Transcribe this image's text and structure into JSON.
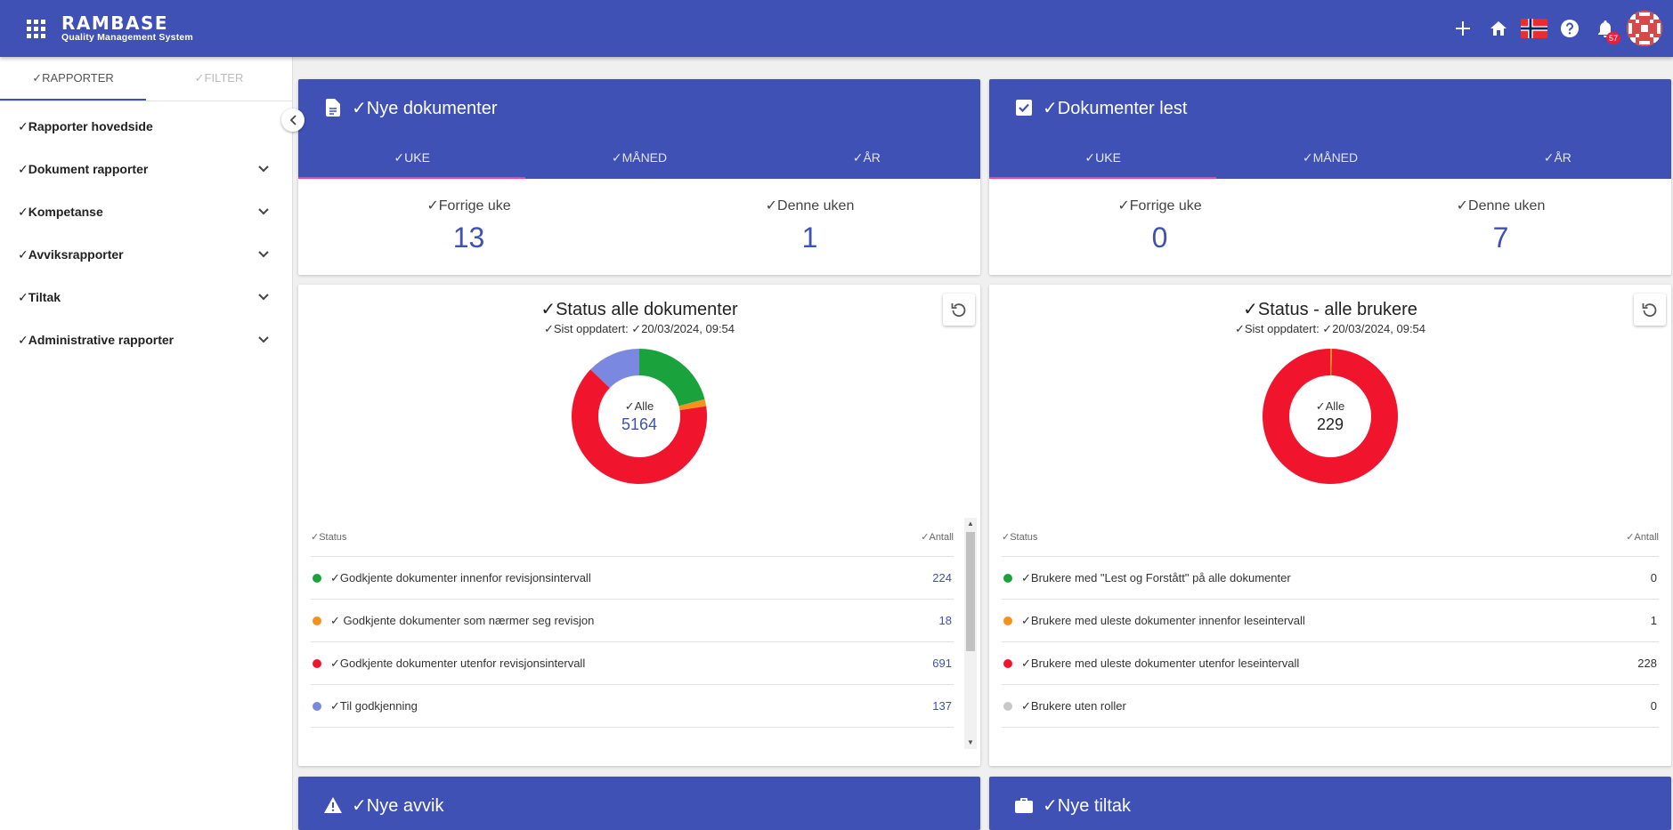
{
  "app": {
    "brand": "RAMBASE",
    "subtitle": "Quality Management System"
  },
  "topbar": {
    "notification_count": "57",
    "icons": [
      "apps-icon",
      "plus-icon",
      "home-icon",
      "norway-flag-icon",
      "help-icon",
      "bell-icon",
      "avatar"
    ]
  },
  "sidebar": {
    "tabs": [
      {
        "label": "✓RAPPORTER"
      },
      {
        "label": "✓FILTER"
      }
    ],
    "items": [
      {
        "label": "✓Rapporter hovedside"
      },
      {
        "label": "✓Dokument rapporter"
      },
      {
        "label": "✓Kompetanse"
      },
      {
        "label": "✓Avviksrapporter"
      },
      {
        "label": "✓Tiltak"
      },
      {
        "label": "✓Administrative rapporter"
      }
    ]
  },
  "cards": {
    "nye_dokumenter": {
      "title": "✓Nye dokumenter",
      "tabs": [
        "✓UKE",
        "✓MÅNED",
        "✓ÅR"
      ],
      "prev_label": "✓Forrige uke",
      "prev_value": "13",
      "curr_label": "✓Denne uken",
      "curr_value": "1"
    },
    "dokumenter_lest": {
      "title": "✓Dokumenter lest",
      "tabs": [
        "✓UKE",
        "✓MÅNED",
        "✓ÅR"
      ],
      "prev_label": "✓Forrige uke",
      "prev_value": "0",
      "curr_label": "✓Denne uken",
      "curr_value": "7"
    },
    "status_dokumenter": {
      "title": "✓Status alle dokumenter",
      "updated": "✓Sist oppdatert: ✓20/03/2024, 09:54",
      "center_label": "✓Alle",
      "center_value": "5164",
      "col_status": "✓Status",
      "col_count": "✓Antall",
      "rows": [
        {
          "label": "✓Godkjente dokumenter innenfor revisjonsintervall",
          "count": "224",
          "color": "#1aa33c"
        },
        {
          "label": "✓ Godkjente dokumenter som nærmer seg revisjon",
          "count": "18",
          "color": "#f5921e"
        },
        {
          "label": "✓Godkjente dokumenter utenfor revisjonsintervall",
          "count": "691",
          "color": "#f0142d"
        },
        {
          "label": "✓Til godkjenning",
          "count": "137",
          "color": "#7b88e0"
        }
      ]
    },
    "status_brukere": {
      "title": "✓Status - alle brukere",
      "updated": "✓Sist oppdatert: ✓20/03/2024, 09:54",
      "center_label": "✓Alle",
      "center_value": "229",
      "col_status": "✓Status",
      "col_count": "✓Antall",
      "rows": [
        {
          "label": "✓Brukere med \"Lest og Forstått\" på alle dokumenter",
          "count": "0",
          "color": "#1aa33c"
        },
        {
          "label": "✓Brukere med uleste dokumenter innenfor leseintervall",
          "count": "1",
          "color": "#f5921e"
        },
        {
          "label": "✓Brukere med uleste dokumenter utenfor leseintervall",
          "count": "228",
          "color": "#f0142d"
        },
        {
          "label": "✓Brukere uten roller",
          "count": "0",
          "color": "#c8c8c8"
        }
      ]
    },
    "nye_avvik": {
      "title": "✓Nye avvik"
    },
    "nye_tiltak": {
      "title": "✓Nye tiltak"
    }
  },
  "colors": {
    "primary": "#3f51b5",
    "accent": "#ff4081",
    "green": "#1aa33c",
    "orange": "#f5921e",
    "red": "#f0142d"
  }
}
